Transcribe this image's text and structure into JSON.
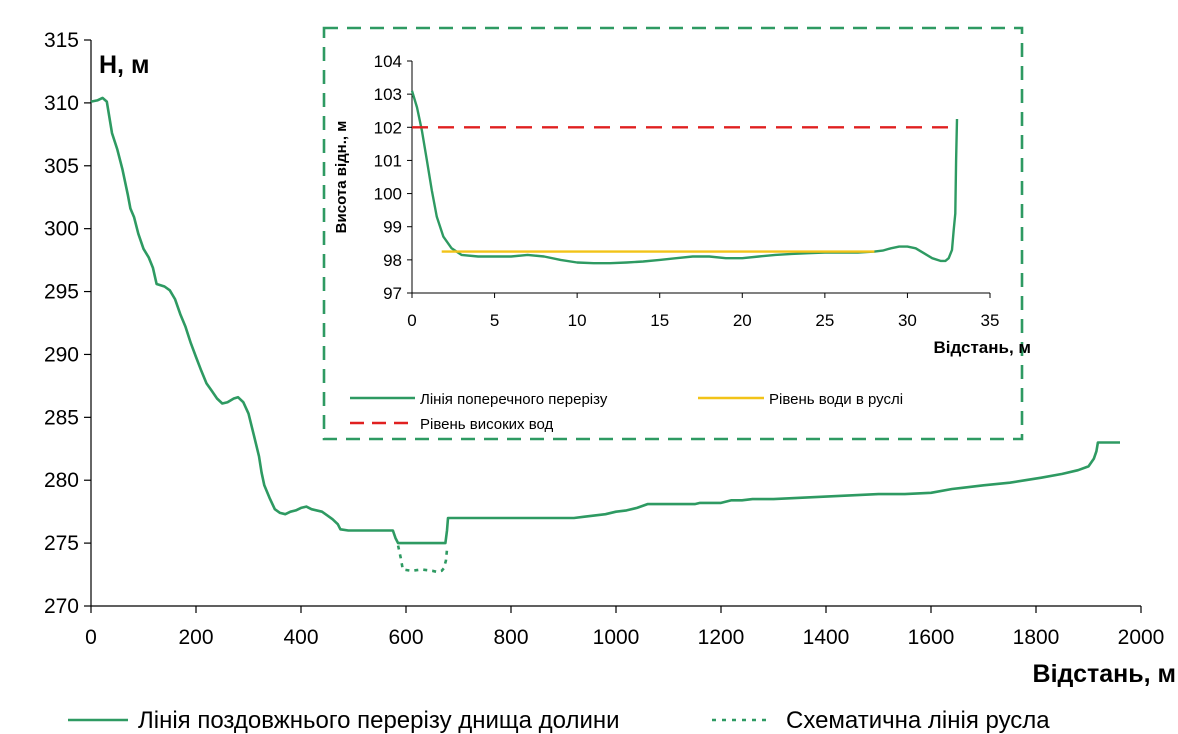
{
  "chart_data": [
    {
      "type": "line",
      "title": "",
      "ylabel": "H, м",
      "xlabel": "Відстань, м",
      "xlim": [
        0,
        2000
      ],
      "ylim": [
        270,
        315
      ],
      "x_ticks": [
        0,
        200,
        400,
        600,
        800,
        1000,
        1200,
        1400,
        1600,
        1800,
        2000
      ],
      "y_ticks": [
        270,
        275,
        280,
        285,
        290,
        295,
        300,
        305,
        310,
        315
      ],
      "grid": false,
      "legend_position": "bottom",
      "series": [
        {
          "name": "Лінія поздовжнього перерізу днища долини",
          "style": "solid",
          "color": "#2e9a62",
          "points": [
            [
              0,
              310.1
            ],
            [
              12,
              310.2
            ],
            [
              22,
              310.4
            ],
            [
              30,
              310.1
            ],
            [
              40,
              307.6
            ],
            [
              50,
              306.3
            ],
            [
              60,
              304.7
            ],
            [
              70,
              302.7
            ],
            [
              75,
              301.6
            ],
            [
              82,
              300.9
            ],
            [
              90,
              299.6
            ],
            [
              100,
              298.4
            ],
            [
              110,
              297.7
            ],
            [
              118,
              296.9
            ],
            [
              125,
              295.6
            ],
            [
              140,
              295.4
            ],
            [
              150,
              295.1
            ],
            [
              160,
              294.4
            ],
            [
              170,
              293.2
            ],
            [
              180,
              292.2
            ],
            [
              190,
              290.9
            ],
            [
              200,
              289.8
            ],
            [
              210,
              288.7
            ],
            [
              220,
              287.7
            ],
            [
              230,
              287.1
            ],
            [
              240,
              286.5
            ],
            [
              250,
              286.1
            ],
            [
              260,
              286.2
            ],
            [
              272,
              286.5
            ],
            [
              280,
              286.6
            ],
            [
              290,
              286.2
            ],
            [
              300,
              285.3
            ],
            [
              310,
              283.6
            ],
            [
              320,
              281.9
            ],
            [
              325,
              280.6
            ],
            [
              330,
              279.6
            ],
            [
              340,
              278.6
            ],
            [
              350,
              277.7
            ],
            [
              360,
              277.4
            ],
            [
              370,
              277.3
            ],
            [
              380,
              277.5
            ],
            [
              390,
              277.6
            ],
            [
              400,
              277.8
            ],
            [
              410,
              277.9
            ],
            [
              420,
              277.7
            ],
            [
              440,
              277.5
            ],
            [
              450,
              277.2
            ],
            [
              460,
              276.9
            ],
            [
              470,
              276.5
            ],
            [
              475,
              276.1
            ],
            [
              490,
              276.0
            ],
            [
              500,
              276.0
            ],
            [
              520,
              276.0
            ],
            [
              550,
              276.0
            ],
            [
              575,
              276.0
            ],
            [
              580,
              275.4
            ],
            [
              585,
              275.0
            ],
            [
              600,
              275.0
            ],
            [
              620,
              275.0
            ],
            [
              640,
              275.0
            ],
            [
              660,
              275.0
            ],
            [
              675,
              275.0
            ],
            [
              678,
              276.0
            ],
            [
              680,
              277.0
            ],
            [
              700,
              277.0
            ],
            [
              750,
              277.0
            ],
            [
              800,
              277.0
            ],
            [
              850,
              277.0
            ],
            [
              900,
              277.0
            ],
            [
              920,
              277.0
            ],
            [
              940,
              277.1
            ],
            [
              960,
              277.2
            ],
            [
              980,
              277.3
            ],
            [
              1000,
              277.5
            ],
            [
              1020,
              277.6
            ],
            [
              1040,
              277.8
            ],
            [
              1060,
              278.1
            ],
            [
              1080,
              278.1
            ],
            [
              1100,
              278.1
            ],
            [
              1150,
              278.1
            ],
            [
              1160,
              278.2
            ],
            [
              1200,
              278.2
            ],
            [
              1220,
              278.4
            ],
            [
              1240,
              278.4
            ],
            [
              1260,
              278.5
            ],
            [
              1300,
              278.5
            ],
            [
              1350,
              278.6
            ],
            [
              1400,
              278.7
            ],
            [
              1450,
              278.8
            ],
            [
              1500,
              278.9
            ],
            [
              1550,
              278.9
            ],
            [
              1600,
              279.0
            ],
            [
              1640,
              279.3
            ],
            [
              1660,
              279.4
            ],
            [
              1700,
              279.6
            ],
            [
              1750,
              279.8
            ],
            [
              1780,
              280.0
            ],
            [
              1810,
              280.2
            ],
            [
              1850,
              280.5
            ],
            [
              1880,
              280.8
            ],
            [
              1900,
              281.1
            ],
            [
              1910,
              281.7
            ],
            [
              1915,
              282.3
            ],
            [
              1918,
              283.0
            ],
            [
              1930,
              283.0
            ],
            [
              1950,
              283.0
            ],
            [
              1960,
              283.0
            ]
          ]
        },
        {
          "name": "Схематична лінія русла",
          "style": "dashed",
          "color": "#2e9a62",
          "points": [
            [
              585,
              274.8
            ],
            [
              590,
              273.8
            ],
            [
              594,
              272.9
            ],
            [
              610,
              272.8
            ],
            [
              630,
              272.9
            ],
            [
              650,
              272.8
            ],
            [
              660,
              272.7
            ],
            [
              668,
              272.8
            ],
            [
              672,
              273.0
            ],
            [
              676,
              273.6
            ],
            [
              678,
              274.5
            ]
          ]
        }
      ]
    },
    {
      "type": "line",
      "title": "",
      "ylabel": "Висота відн., м",
      "xlabel": "Відстань, м",
      "xlim": [
        0,
        35
      ],
      "ylim": [
        97,
        104
      ],
      "x_ticks": [
        0,
        5,
        10,
        15,
        20,
        25,
        30,
        35
      ],
      "y_ticks": [
        97,
        98,
        99,
        100,
        101,
        102,
        103,
        104
      ],
      "grid": false,
      "legend_position": "bottom",
      "series": [
        {
          "name": "Лінія поперечного перерізу",
          "style": "solid",
          "color": "#2e9a62",
          "points": [
            [
              0,
              103.1
            ],
            [
              0.3,
              102.6
            ],
            [
              0.6,
              101.9
            ],
            [
              0.9,
              101.0
            ],
            [
              1.2,
              100.1
            ],
            [
              1.5,
              99.3
            ],
            [
              1.9,
              98.7
            ],
            [
              2.4,
              98.35
            ],
            [
              3,
              98.15
            ],
            [
              4,
              98.1
            ],
            [
              5,
              98.1
            ],
            [
              6,
              98.1
            ],
            [
              7,
              98.15
            ],
            [
              8,
              98.1
            ],
            [
              9,
              98.0
            ],
            [
              10,
              97.92
            ],
            [
              11,
              97.9
            ],
            [
              12,
              97.9
            ],
            [
              13,
              97.92
            ],
            [
              14,
              97.95
            ],
            [
              15,
              98.0
            ],
            [
              16,
              98.05
            ],
            [
              17,
              98.1
            ],
            [
              18,
              98.1
            ],
            [
              19,
              98.05
            ],
            [
              20,
              98.05
            ],
            [
              21,
              98.1
            ],
            [
              22,
              98.15
            ],
            [
              23,
              98.18
            ],
            [
              24,
              98.2
            ],
            [
              25,
              98.22
            ],
            [
              26,
              98.22
            ],
            [
              27,
              98.22
            ],
            [
              28,
              98.25
            ],
            [
              28.5,
              98.28
            ],
            [
              29,
              98.35
            ],
            [
              29.5,
              98.4
            ],
            [
              30,
              98.4
            ],
            [
              30.5,
              98.35
            ],
            [
              31,
              98.2
            ],
            [
              31.5,
              98.05
            ],
            [
              32,
              97.97
            ],
            [
              32.3,
              97.97
            ],
            [
              32.5,
              98.05
            ],
            [
              32.7,
              98.3
            ],
            [
              32.8,
              98.9
            ],
            [
              32.9,
              99.4
            ],
            [
              32.95,
              101.0
            ],
            [
              33,
              102.25
            ]
          ]
        },
        {
          "name": "Рівень води в руслі",
          "style": "solid",
          "color": "#f2c318",
          "points": [
            [
              1.8,
              98.25
            ],
            [
              28,
              98.25
            ]
          ]
        },
        {
          "name": "Рівень високих вод",
          "style": "dashed",
          "color": "#e02020",
          "points": [
            [
              0,
              102.0
            ],
            [
              33,
              102.0
            ]
          ]
        }
      ]
    }
  ],
  "inset_frame_color": "#2e9a62"
}
